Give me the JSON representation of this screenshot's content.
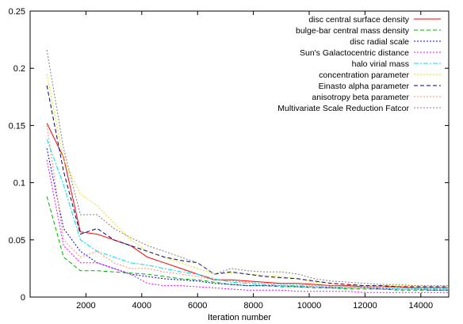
{
  "chart_data": {
    "type": "line",
    "title": "",
    "xlabel": "Iteration number",
    "ylabel": "",
    "xlim": [
      0,
      15000
    ],
    "ylim": [
      0,
      0.25
    ],
    "xticks": [
      2000,
      4000,
      6000,
      8000,
      10000,
      12000,
      14000
    ],
    "xtick_labels": [
      "2000",
      "4000",
      "6000",
      "8000",
      "10000",
      "12000",
      "14000"
    ],
    "yticks": [
      0,
      0.05,
      0.1,
      0.15,
      0.2,
      0.25
    ],
    "ytick_labels": [
      "0",
      "0.05",
      "0.1",
      "0.15",
      "0.2",
      "0.25"
    ],
    "grid": false,
    "legend_position": "top-right",
    "series": [
      {
        "name": "disc central surface density",
        "color": "#ff0000",
        "dash": "solid",
        "x": [
          600,
          1200,
          1800,
          2400,
          3000,
          3600,
          4200,
          4800,
          5400,
          6000,
          6600,
          7200,
          7800,
          8400,
          9000,
          9600,
          10200,
          10800,
          11400,
          12000,
          12600,
          13200,
          13800,
          14400,
          15000
        ],
        "y": [
          0.152,
          0.122,
          0.057,
          0.055,
          0.05,
          0.045,
          0.035,
          0.03,
          0.025,
          0.02,
          0.015,
          0.015,
          0.014,
          0.013,
          0.012,
          0.012,
          0.011,
          0.01,
          0.01,
          0.009,
          0.009,
          0.009,
          0.008,
          0.008,
          0.008
        ]
      },
      {
        "name": "bulge-bar central mass density",
        "color": "#00b000",
        "dash": "dash",
        "x": [
          600,
          1200,
          1800,
          2400,
          3000,
          3600,
          4200,
          4800,
          5400,
          6000,
          6600,
          7200,
          7800,
          8400,
          9000,
          9600,
          10200,
          10800,
          11400,
          12000,
          12600,
          13200,
          13800,
          14400,
          15000
        ],
        "y": [
          0.088,
          0.035,
          0.023,
          0.023,
          0.022,
          0.021,
          0.02,
          0.018,
          0.016,
          0.015,
          0.013,
          0.011,
          0.01,
          0.01,
          0.009,
          0.009,
          0.008,
          0.008,
          0.007,
          0.007,
          0.007,
          0.006,
          0.006,
          0.006,
          0.006
        ]
      },
      {
        "name": "disc radial scale",
        "color": "#0000ff",
        "dash": "dot",
        "x": [
          600,
          1200,
          1800,
          2400,
          3000,
          3600,
          4200,
          4800,
          5400,
          6000,
          6600,
          7200,
          7800,
          8400,
          9000,
          9600,
          10200,
          10800,
          11400,
          12000,
          12600,
          13200,
          13800,
          14400,
          15000
        ],
        "y": [
          0.13,
          0.06,
          0.04,
          0.03,
          0.025,
          0.02,
          0.018,
          0.016,
          0.015,
          0.014,
          0.012,
          0.011,
          0.01,
          0.01,
          0.01,
          0.009,
          0.009,
          0.008,
          0.008,
          0.008,
          0.007,
          0.007,
          0.007,
          0.006,
          0.006
        ]
      },
      {
        "name": "Sun's Galactocentric distance",
        "color": "#ff00ff",
        "dash": "dot",
        "x": [
          600,
          1200,
          1800,
          2400,
          3000,
          3600,
          4200,
          4800,
          5400,
          6000,
          6600,
          7200,
          7800,
          8400,
          9000,
          9600,
          10200,
          10800,
          11400,
          12000,
          12600,
          13200,
          13800,
          14400,
          15000
        ],
        "y": [
          0.12,
          0.045,
          0.03,
          0.03,
          0.025,
          0.02,
          0.012,
          0.01,
          0.01,
          0.009,
          0.008,
          0.007,
          0.006,
          0.006,
          0.006,
          0.005,
          0.005,
          0.005,
          0.005,
          0.004,
          0.004,
          0.004,
          0.004,
          0.004,
          0.004
        ]
      },
      {
        "name": "halo virial mass",
        "color": "#00e0e0",
        "dash": "dashdot",
        "x": [
          600,
          1200,
          1800,
          2400,
          3000,
          3600,
          4200,
          4800,
          5400,
          6000,
          6600,
          7200,
          7800,
          8400,
          9000,
          9600,
          10200,
          10800,
          11400,
          12000,
          12600,
          13200,
          13800,
          14400,
          15000
        ],
        "y": [
          0.138,
          0.098,
          0.05,
          0.04,
          0.035,
          0.03,
          0.028,
          0.025,
          0.022,
          0.02,
          0.016,
          0.013,
          0.012,
          0.011,
          0.01,
          0.01,
          0.009,
          0.009,
          0.008,
          0.008,
          0.008,
          0.007,
          0.007,
          0.007,
          0.007
        ]
      },
      {
        "name": "concentration parameter",
        "color": "#e6e600",
        "dash": "dot",
        "x": [
          600,
          1200,
          1800,
          2400,
          3000,
          3600,
          4200,
          4800,
          5400,
          6000,
          6600,
          7200,
          7800,
          8400,
          9000,
          9600,
          10200,
          10800,
          11400,
          12000,
          12600,
          13200,
          13800,
          14400,
          15000
        ],
        "y": [
          0.195,
          0.12,
          0.09,
          0.08,
          0.065,
          0.05,
          0.04,
          0.035,
          0.03,
          0.025,
          0.02,
          0.021,
          0.02,
          0.019,
          0.018,
          0.016,
          0.013,
          0.012,
          0.011,
          0.01,
          0.01,
          0.01,
          0.01,
          0.009,
          0.009
        ]
      },
      {
        "name": "Einasto alpha parameter",
        "color": "#000080",
        "dash": "dash",
        "x": [
          600,
          1200,
          1800,
          2400,
          3000,
          3600,
          4200,
          4800,
          5400,
          6000,
          6600,
          7200,
          7800,
          8400,
          9000,
          9600,
          10200,
          10800,
          11400,
          12000,
          12600,
          13200,
          13800,
          14400,
          15000
        ],
        "y": [
          0.185,
          0.11,
          0.055,
          0.06,
          0.05,
          0.045,
          0.04,
          0.035,
          0.032,
          0.03,
          0.02,
          0.022,
          0.02,
          0.018,
          0.017,
          0.016,
          0.014,
          0.012,
          0.011,
          0.01,
          0.01,
          0.009,
          0.009,
          0.009,
          0.009
        ]
      },
      {
        "name": "anisotropy beta parameter",
        "color": "#ff8c69",
        "dash": "dot",
        "x": [
          600,
          1200,
          1800,
          2400,
          3000,
          3600,
          4200,
          4800,
          5400,
          6000,
          6600,
          7200,
          7800,
          8400,
          9000,
          9600,
          10200,
          10800,
          11400,
          12000,
          12600,
          13200,
          13800,
          14400,
          15000
        ],
        "y": [
          0.15,
          0.05,
          0.035,
          0.04,
          0.03,
          0.025,
          0.025,
          0.022,
          0.02,
          0.018,
          0.015,
          0.014,
          0.013,
          0.012,
          0.011,
          0.011,
          0.01,
          0.01,
          0.009,
          0.009,
          0.009,
          0.008,
          0.008,
          0.008,
          0.008
        ]
      },
      {
        "name": "Multivariate Scale Reduction Fatcor",
        "color": "#808080",
        "dash": "dot",
        "x": [
          600,
          1200,
          1800,
          2400,
          3000,
          3600,
          4200,
          4800,
          5400,
          6000,
          6600,
          7200,
          7800,
          8400,
          9000,
          9600,
          10200,
          10800,
          11400,
          12000,
          12600,
          13200,
          13800,
          14400,
          15000
        ],
        "y": [
          0.216,
          0.13,
          0.072,
          0.072,
          0.06,
          0.052,
          0.045,
          0.04,
          0.035,
          0.03,
          0.02,
          0.025,
          0.023,
          0.022,
          0.022,
          0.02,
          0.016,
          0.014,
          0.013,
          0.012,
          0.011,
          0.011,
          0.01,
          0.01,
          0.01
        ]
      }
    ]
  }
}
